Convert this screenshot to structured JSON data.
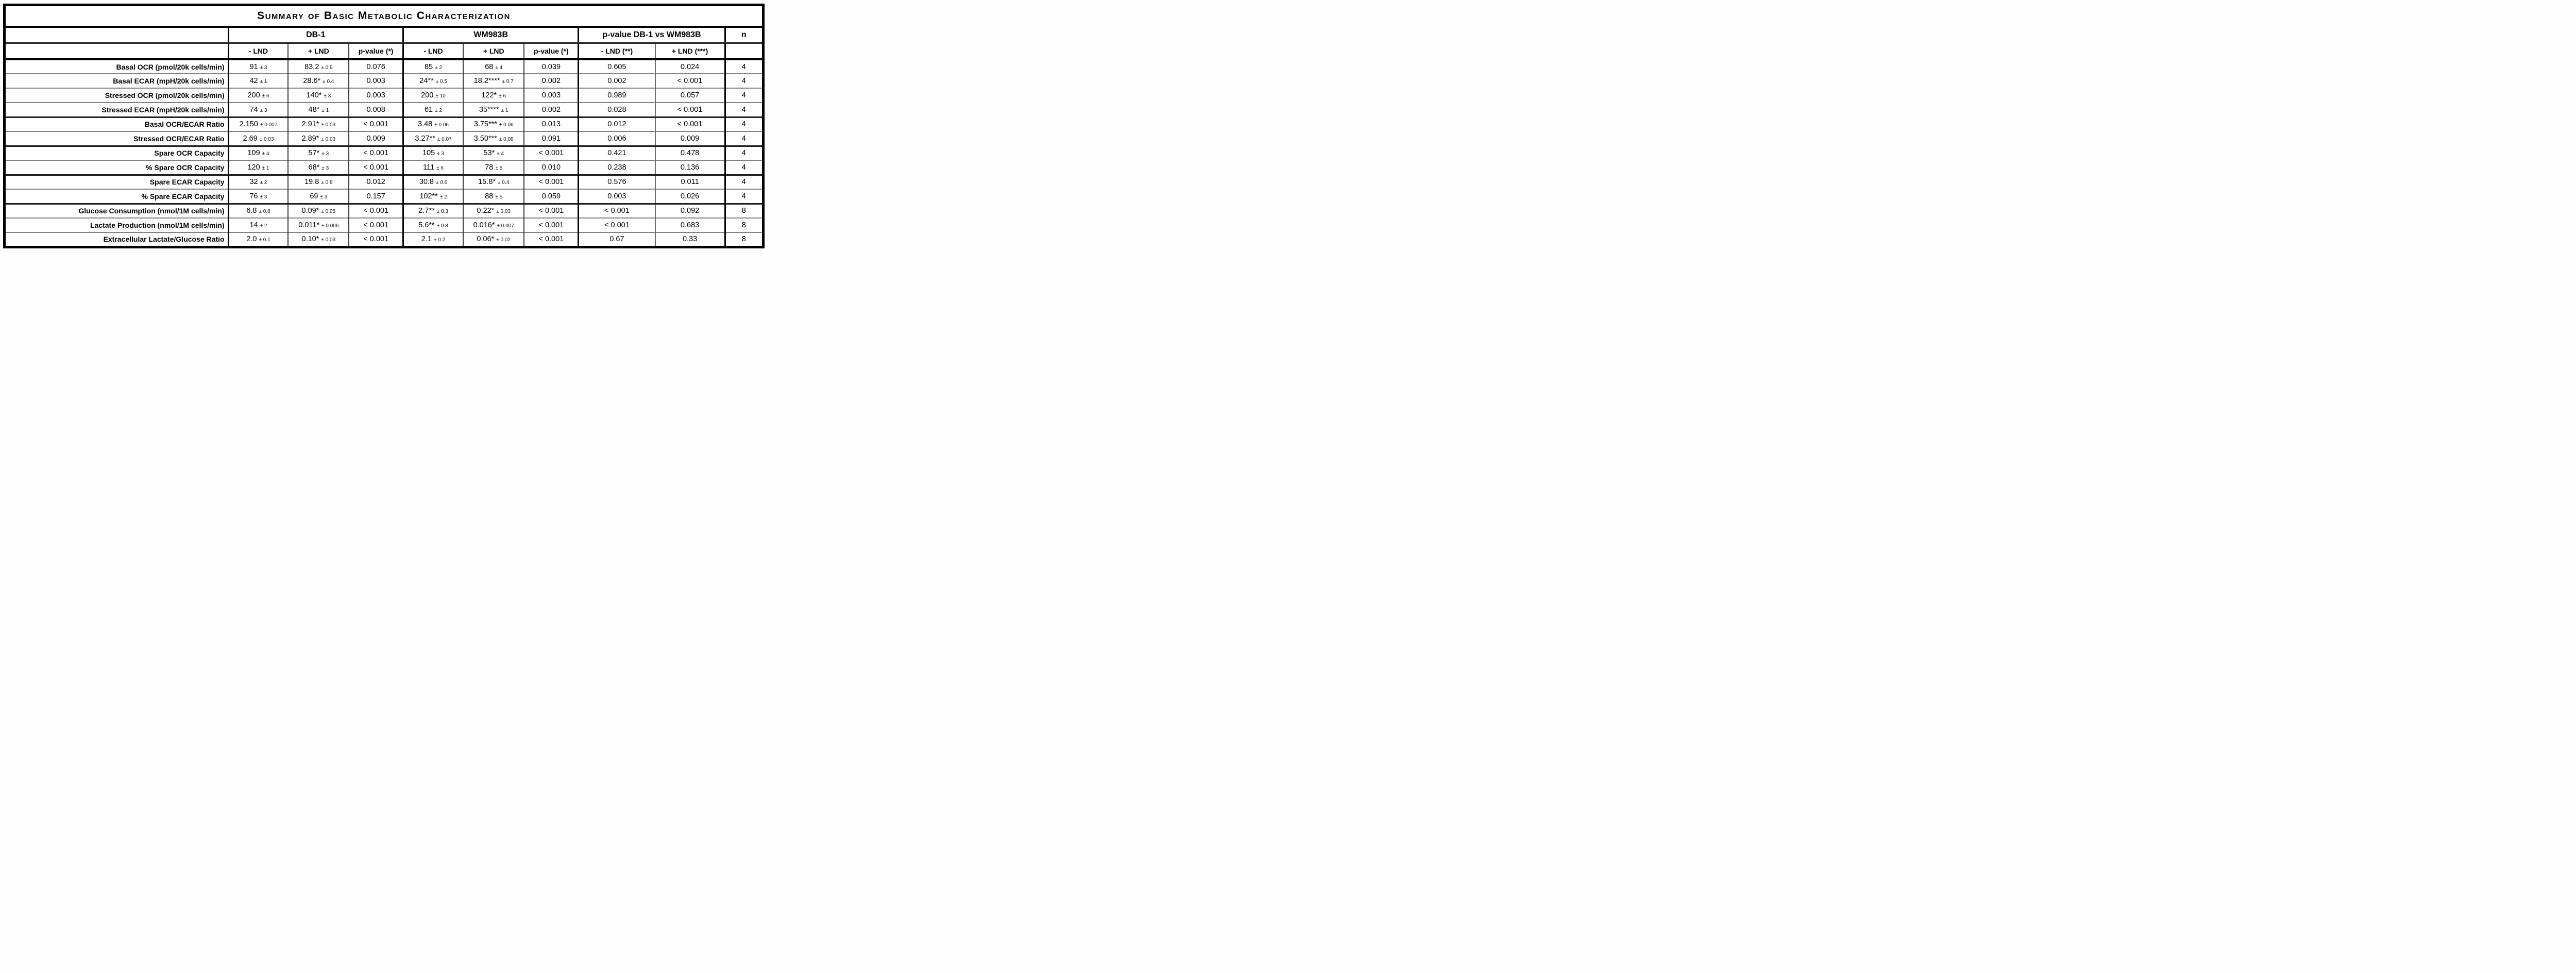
{
  "chart_data": {
    "type": "table",
    "title": "Summary of Basic Metabolic Characterization",
    "column_groups": [
      {
        "label": "",
        "span": 1
      },
      {
        "label": "DB-1",
        "span": 3
      },
      {
        "label": "WM983B",
        "span": 3
      },
      {
        "label": "p-value DB-1 vs WM983B",
        "span": 2
      },
      {
        "label": "n",
        "span": 1
      }
    ],
    "sub_headers": [
      "- LND",
      "+ LND",
      "p-value (*)",
      "- LND",
      "+ LND",
      "p-value (*)",
      "- LND (**)",
      "+ LND (***)"
    ],
    "rows": [
      {
        "label": "Basal OCR (pmol/20k cells/min)",
        "cells": [
          {
            "v": "91",
            "u": "3"
          },
          {
            "v": "83.2",
            "u": "0.9"
          },
          {
            "v": "0.076"
          },
          {
            "v": "85",
            "u": "2"
          },
          {
            "v": "68",
            "u": "4"
          },
          {
            "v": "0.039"
          },
          {
            "v": "0.605"
          },
          {
            "v": "0.024"
          }
        ],
        "n": "4"
      },
      {
        "label": "Basal ECAR (mpH/20k cells/min)",
        "cells": [
          {
            "v": "42",
            "u": "1"
          },
          {
            "v": "28.6*",
            "u": "0.4"
          },
          {
            "v": "0.003"
          },
          {
            "v": "24**",
            "u": "0.5"
          },
          {
            "v": "18.2****",
            "u": "0.7"
          },
          {
            "v": "0.002"
          },
          {
            "v": "0.002"
          },
          {
            "v": "< 0.001"
          }
        ],
        "n": "4"
      },
      {
        "label": "Stressed OCR (pmol/20k cells/min)",
        "cells": [
          {
            "v": "200",
            "u": "6"
          },
          {
            "v": "140*",
            "u": "3"
          },
          {
            "v": "0.003"
          },
          {
            "v": "200",
            "u": "10"
          },
          {
            "v": "122*",
            "u": "6"
          },
          {
            "v": "0.003"
          },
          {
            "v": "0.989"
          },
          {
            "v": "0.057"
          }
        ],
        "n": "4"
      },
      {
        "label": "Stressed ECAR (mpH/20k cells/min)",
        "cells": [
          {
            "v": "74",
            "u": "3"
          },
          {
            "v": "48*",
            "u": "1"
          },
          {
            "v": "0.008"
          },
          {
            "v": "61",
            "u": "2"
          },
          {
            "v": "35****",
            "u": "1"
          },
          {
            "v": "0.002"
          },
          {
            "v": "0.028"
          },
          {
            "v": "< 0.001"
          }
        ],
        "n": "4"
      },
      {
        "label": "Basal OCR/ECAR Ratio",
        "cells": [
          {
            "v": "2.150",
            "u": "0.007"
          },
          {
            "v": "2.91*",
            "u": "0.03"
          },
          {
            "v": "< 0.001"
          },
          {
            "v": "3.48",
            "u": "0.06"
          },
          {
            "v": "3.75***",
            "u": "0.06"
          },
          {
            "v": "0.013"
          },
          {
            "v": "0.012"
          },
          {
            "v": "< 0.001"
          }
        ],
        "n": "4"
      },
      {
        "label": "Stressed OCR/ECAR Ratio",
        "cells": [
          {
            "v": "2.69",
            "u": "0.03"
          },
          {
            "v": "2.89*",
            "u": "0.03"
          },
          {
            "v": "0.009"
          },
          {
            "v": "3.27**",
            "u": "0.07"
          },
          {
            "v": "3.50***",
            "u": "0.08"
          },
          {
            "v": "0.091"
          },
          {
            "v": "0.006"
          },
          {
            "v": "0.009"
          }
        ],
        "n": "4"
      },
      {
        "label": "Spare OCR Capacity",
        "cells": [
          {
            "v": "109",
            "u": "4"
          },
          {
            "v": "57*",
            "u": "3"
          },
          {
            "v": "< 0.001"
          },
          {
            "v": "105",
            "u": "3"
          },
          {
            "v": "53*",
            "u": "4"
          },
          {
            "v": "< 0.001"
          },
          {
            "v": "0.421"
          },
          {
            "v": "0.478"
          }
        ],
        "n": "4"
      },
      {
        "label": "% Spare OCR Capacity",
        "cells": [
          {
            "v": "120",
            "u": "1"
          },
          {
            "v": "68*",
            "u": "3"
          },
          {
            "v": "< 0.001"
          },
          {
            "v": "111",
            "u": "6"
          },
          {
            "v": "78",
            "u": "5"
          },
          {
            "v": "0.010"
          },
          {
            "v": "0.238"
          },
          {
            "v": "0.136"
          }
        ],
        "n": "4"
      },
      {
        "label": "Spare ECAR Capacity",
        "cells": [
          {
            "v": "32",
            "u": "2"
          },
          {
            "v": "19.8",
            "u": "0.8"
          },
          {
            "v": "0.012"
          },
          {
            "v": "30.8",
            "u": "0.6"
          },
          {
            "v": "15.8*",
            "u": "0.4"
          },
          {
            "v": "< 0.001"
          },
          {
            "v": "0.576"
          },
          {
            "v": "0.011"
          }
        ],
        "n": "4"
      },
      {
        "label": "% Spare ECAR Capacity",
        "cells": [
          {
            "v": "76",
            "u": "3"
          },
          {
            "v": "69",
            "u": "3"
          },
          {
            "v": "0.157"
          },
          {
            "v": "102**",
            "u": "2"
          },
          {
            "v": "88",
            "u": "5"
          },
          {
            "v": "0.059"
          },
          {
            "v": "0.003"
          },
          {
            "v": "0.026"
          }
        ],
        "n": "4"
      },
      {
        "label": "Glucose Consumption (nmol/1M cells/min)",
        "cells": [
          {
            "v": "6.8",
            "u": "0.8"
          },
          {
            "v": "0.09*",
            "u": "0.05"
          },
          {
            "v": "< 0.001"
          },
          {
            "v": "2.7**",
            "u": "0.3"
          },
          {
            "v": "0.22*",
            "u": "0.03"
          },
          {
            "v": "< 0.001"
          },
          {
            "v": "< 0.001"
          },
          {
            "v": "0.092"
          }
        ],
        "n": "8"
      },
      {
        "label": "Lactate Production (nmol/1M cells/min)",
        "cells": [
          {
            "v": "14",
            "u": "2"
          },
          {
            "v": "0.011*",
            "u": "0.006"
          },
          {
            "v": "< 0.001"
          },
          {
            "v": "5.6**",
            "u": "0.8"
          },
          {
            "v": "0.016*",
            "u": "0.007"
          },
          {
            "v": "< 0.001"
          },
          {
            "v": "< 0.001"
          },
          {
            "v": "0.683"
          }
        ],
        "n": "8"
      },
      {
        "label": "Extracellular Lactate/Glucose Ratio",
        "cells": [
          {
            "v": "2.0",
            "u": "0.1"
          },
          {
            "v": "0.10*",
            "u": "0.03"
          },
          {
            "v": "< 0.001"
          },
          {
            "v": "2.1",
            "u": "0.2"
          },
          {
            "v": "0.06*",
            "u": "0.02"
          },
          {
            "v": "< 0.001"
          },
          {
            "v": "0.67"
          },
          {
            "v": "0.33"
          }
        ],
        "n": "8"
      }
    ]
  }
}
